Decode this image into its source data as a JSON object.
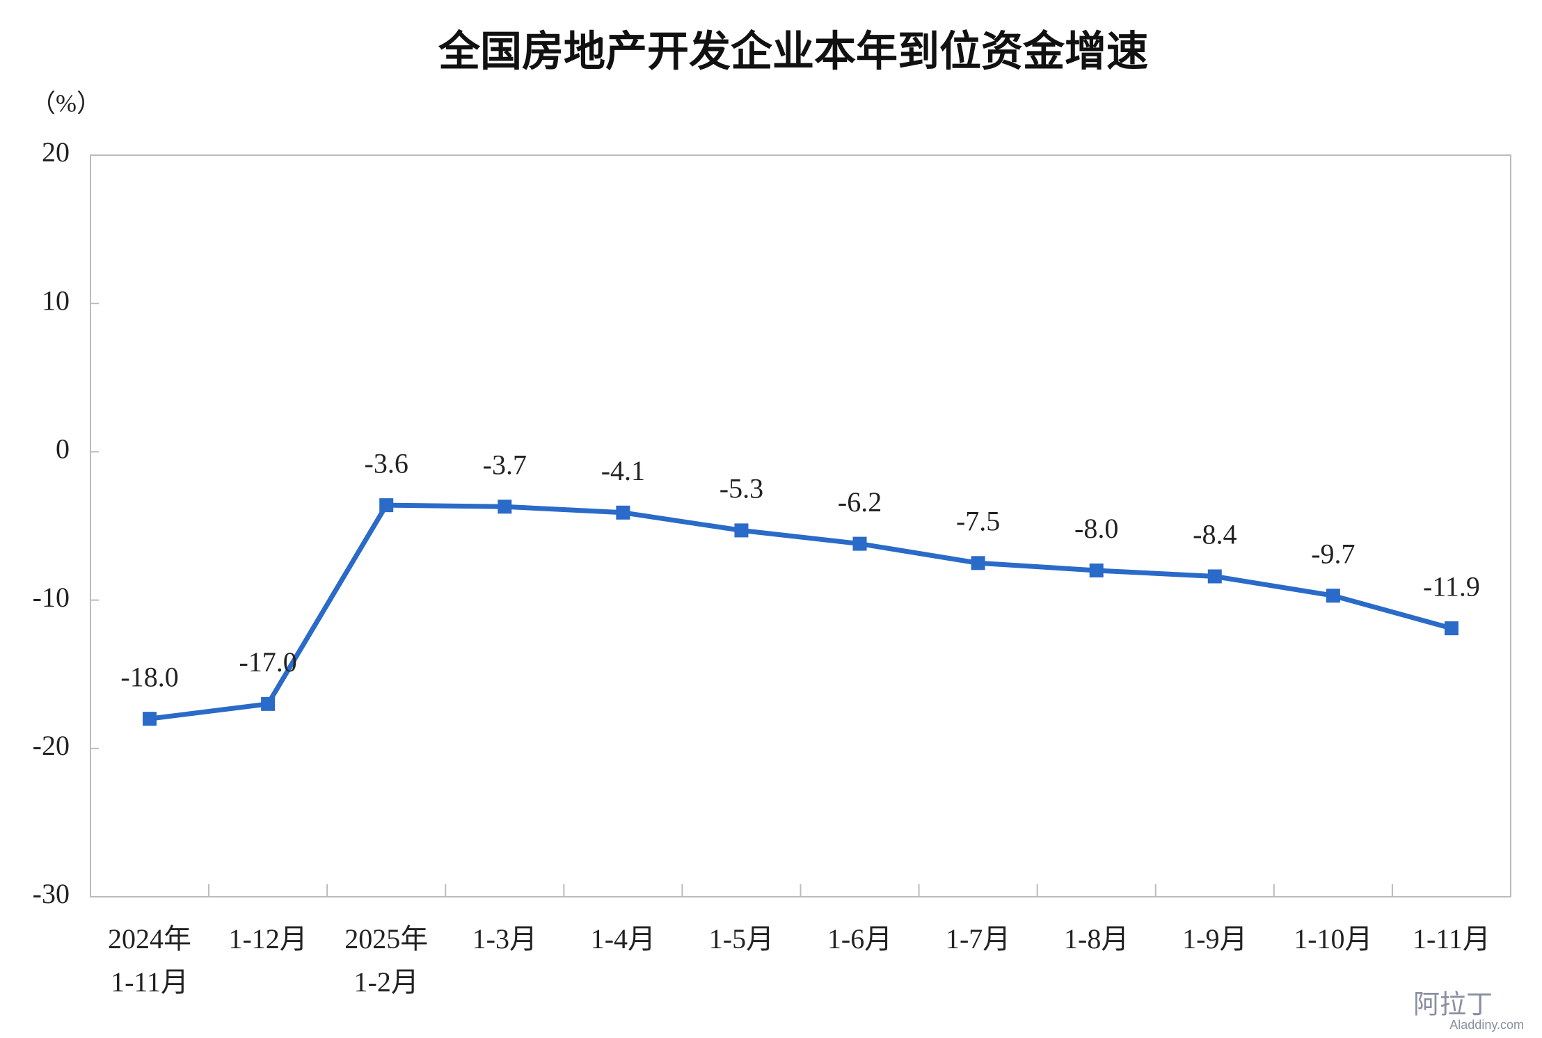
{
  "chart_data": {
    "type": "line",
    "title": "全国房地产开发企业本年到位资金增速",
    "y_axis_label": "（%）",
    "categories": [
      "2024年\n1-11月",
      "1-12月",
      "2025年\n1-2月",
      "1-3月",
      "1-4月",
      "1-5月",
      "1-6月",
      "1-7月",
      "1-8月",
      "1-9月",
      "1-10月",
      "1-11月"
    ],
    "series": [
      {
        "color": "#2a6ac8",
        "values": [
          -18,
          -17,
          -3.6,
          -3.7,
          -4.1,
          -5.3,
          -6.2,
          -7.5,
          -8,
          -8.4,
          -9.7,
          -11.9
        ],
        "value_labels": [
          "-18.0",
          "-17.0",
          "-3.6",
          "-3.7",
          "-4.1",
          "-5.3",
          "-6.2",
          "-7.5",
          "-8.0",
          "-8.4",
          "-9.7",
          "-11.9"
        ]
      }
    ],
    "ylim": [
      -30,
      20
    ],
    "yticks": [
      -30,
      -20,
      -10,
      0,
      10,
      20
    ],
    "grid": false,
    "watermark": [
      "阿拉丁",
      "Aladdiny.com"
    ]
  }
}
